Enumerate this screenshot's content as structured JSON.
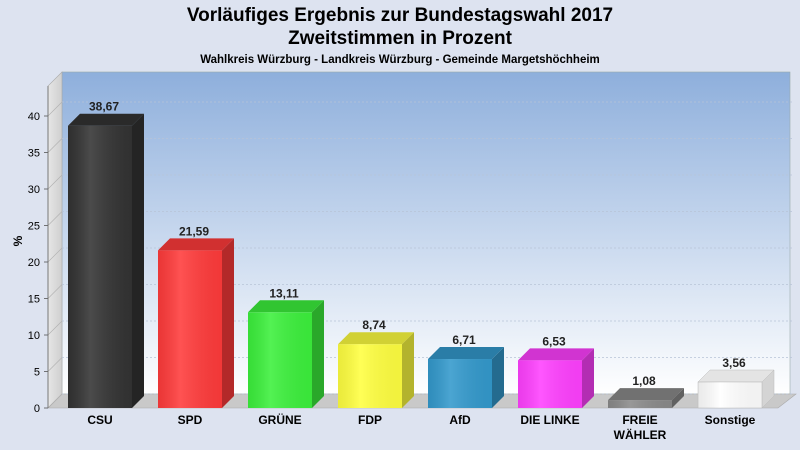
{
  "header": {
    "title_line1": "Vorläufiges Ergebnis zur Bundestagswahl 2017",
    "title_line2": "Zweitstimmen in Prozent",
    "subtitle": "Wahlkreis Würzburg - Landkreis Würzburg - Gemeinde Margetshöchheim"
  },
  "chart_data": {
    "type": "bar",
    "title": "Vorläufiges Ergebnis zur Bundestagswahl 2017 — Zweitstimmen in Prozent",
    "ylabel": "%",
    "ylim": [
      0,
      40
    ],
    "yticks": [
      0,
      5,
      10,
      15,
      20,
      25,
      30,
      35,
      40
    ],
    "grid": true,
    "categories": [
      "CSU",
      "SPD",
      "GRÜNE",
      "FDP",
      "AfD",
      "DIE LINKE",
      "FREIE WÄHLER",
      "Sonstige"
    ],
    "category_lines": [
      [
        "CSU"
      ],
      [
        "SPD"
      ],
      [
        "GRÜNE"
      ],
      [
        "FDP"
      ],
      [
        "AfD"
      ],
      [
        "DIE LINKE"
      ],
      [
        "FREIE",
        "WÄHLER"
      ],
      [
        "Sonstige"
      ]
    ],
    "values": [
      38.67,
      21.59,
      13.11,
      8.74,
      6.71,
      6.53,
      1.08,
      3.56
    ],
    "value_labels": [
      "38,67",
      "21,59",
      "13,11",
      "8,74",
      "6,71",
      "6,53",
      "1,08",
      "3,56"
    ],
    "colors": [
      "#333333",
      "#ff3b3b",
      "#3cf03c",
      "#ffff40",
      "#3399cc",
      "#ff40ff",
      "#8a8a8a",
      "#ffffff"
    ]
  }
}
